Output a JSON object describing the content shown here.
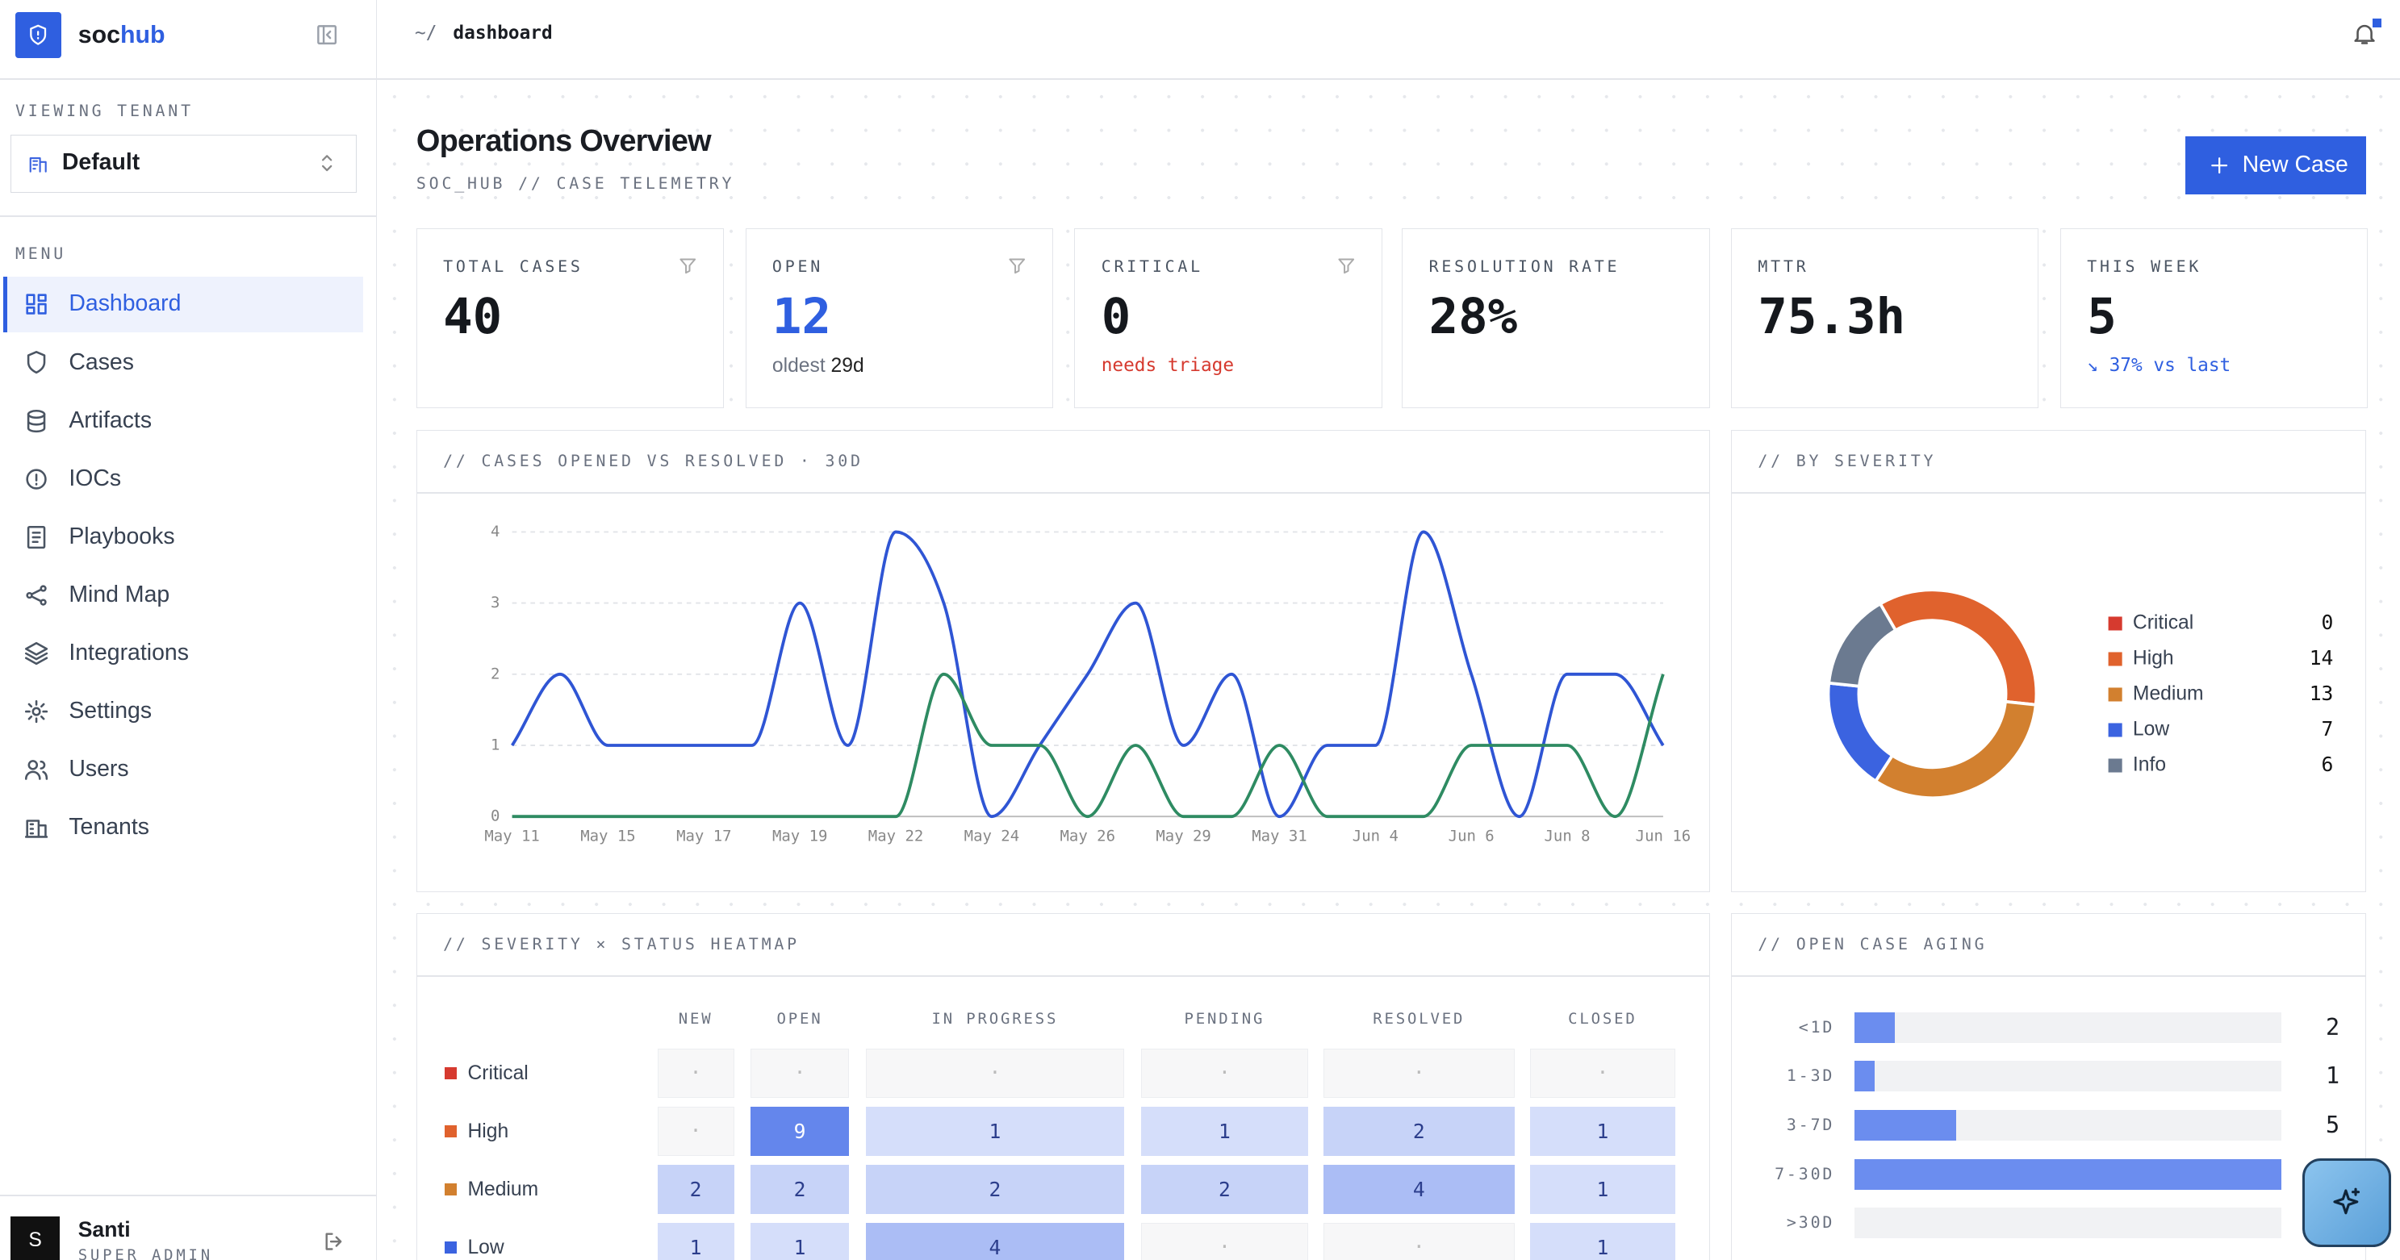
{
  "sidebar": {
    "brand": "soc",
    "brand_accent": "hub",
    "tenant_label": "VIEWING TENANT",
    "tenant": "Default",
    "menu_label": "MENU",
    "menu": [
      "Dashboard",
      "Cases",
      "Artifacts",
      "IOCs",
      "Playbooks",
      "Mind Map",
      "Integrations",
      "Settings",
      "Users",
      "Tenants"
    ],
    "user": {
      "initial": "S",
      "name": "Santi",
      "role": "SUPER ADMIN"
    }
  },
  "topbar": {
    "path_prefix": "~/",
    "path": "dashboard"
  },
  "header": {
    "title": "Operations Overview",
    "subtitle": "SOC_HUB // CASE TELEMETRY",
    "button": "New Case"
  },
  "stats": [
    {
      "label": "TOTAL CASES",
      "value": "40"
    },
    {
      "label": "OPEN",
      "value": "12",
      "note_label": "oldest",
      "note_value": "29d"
    },
    {
      "label": "CRITICAL",
      "value": "0",
      "note": "needs triage"
    },
    {
      "label": "RESOLUTION RATE",
      "value": "28%"
    },
    {
      "label": "MTTR",
      "value": "75.3h"
    },
    {
      "label": "THIS WEEK",
      "value": "5",
      "note": "↘ 37% vs last"
    }
  ],
  "trend": {
    "type": "line",
    "title": "// CASES OPENED VS RESOLVED · 30D",
    "categories": [
      "May 11",
      null,
      "May 15",
      null,
      "May 17",
      null,
      "May 19",
      null,
      "May 22",
      null,
      "May 24",
      null,
      "May 26",
      null,
      "May 29",
      null,
      "May 31",
      null,
      "Jun 4",
      null,
      "Jun 6",
      null,
      "Jun 8",
      null,
      "Jun 16"
    ],
    "ylim": [
      0,
      4
    ],
    "yticks": [
      0,
      1,
      2,
      3,
      4
    ],
    "grid": true,
    "series": [
      {
        "color": "#2f55d4",
        "values": [
          1,
          2,
          1,
          1,
          1,
          1,
          3,
          1,
          4,
          3,
          0,
          1,
          2,
          3,
          1,
          2,
          0,
          1,
          1,
          4,
          2,
          0,
          2,
          2,
          1
        ]
      },
      {
        "color": "#2e8b62",
        "values": [
          0,
          0,
          0,
          0,
          0,
          0,
          0,
          0,
          0,
          2,
          1,
          1,
          0,
          1,
          0,
          0,
          1,
          0,
          0,
          0,
          1,
          1,
          1,
          0,
          2
        ]
      }
    ]
  },
  "severity": {
    "type": "pie",
    "title": "// BY SEVERITY",
    "categories": [
      "Critical",
      "High",
      "Medium",
      "Low",
      "Info"
    ],
    "values": [
      0,
      14,
      13,
      7,
      6
    ],
    "colors": [
      "#d63a2f",
      "#e0622d",
      "#d2802f",
      "#3b63e0",
      "#6b7a90"
    ]
  },
  "heatmap": {
    "title": "// SEVERITY × STATUS HEATMAP",
    "columns": [
      "NEW",
      "OPEN",
      "IN PROGRESS",
      "PENDING",
      "RESOLVED",
      "CLOSED"
    ],
    "rows": [
      "Critical",
      "High",
      "Medium",
      "Low"
    ],
    "row_colors": [
      "#d63a2f",
      "#e0622d",
      "#d2802f",
      "#3b63e0"
    ],
    "empty_label": "·",
    "values": [
      [
        0,
        0,
        0,
        0,
        0,
        0
      ],
      [
        0,
        9,
        1,
        1,
        2,
        1
      ],
      [
        2,
        2,
        2,
        2,
        4,
        1
      ],
      [
        1,
        1,
        4,
        0,
        0,
        1
      ]
    ]
  },
  "aging": {
    "type": "bar",
    "title": "// OPEN CASE AGING",
    "categories": [
      "<1D",
      "1-3D",
      "3-7D",
      "7-30D",
      ">30D"
    ],
    "values": [
      2,
      1,
      5,
      21,
      0
    ],
    "color": "#6b8def"
  }
}
